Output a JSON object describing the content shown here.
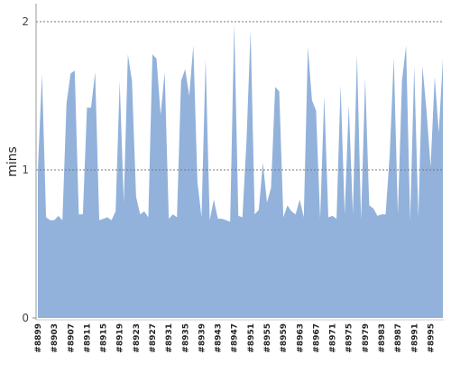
{
  "chart_data": {
    "type": "area",
    "ylabel": "mins",
    "color": "#92b2db",
    "grid": true,
    "ylim": [
      0,
      2.11
    ],
    "yticks": [
      0,
      1,
      2
    ],
    "categories": [
      "#8899",
      null,
      null,
      null,
      "#8903",
      null,
      null,
      null,
      "#8907",
      null,
      null,
      null,
      "#8911",
      null,
      null,
      null,
      "#8915",
      null,
      null,
      null,
      "#8919",
      null,
      null,
      null,
      "#8923",
      null,
      null,
      null,
      "#8927",
      null,
      null,
      null,
      "#8931",
      null,
      null,
      null,
      "#8935",
      null,
      null,
      null,
      "#8939",
      null,
      null,
      null,
      "#8943",
      null,
      null,
      null,
      "#8947",
      null,
      null,
      null,
      "#8951",
      null,
      null,
      null,
      "#8955",
      null,
      null,
      null,
      "#8959",
      null,
      null,
      null,
      "#8963",
      null,
      null,
      null,
      "#8967",
      null,
      null,
      null,
      "#8971",
      null,
      null,
      null,
      "#8975",
      null,
      null,
      null,
      "#8979",
      null,
      null,
      null,
      "#8983",
      null,
      null,
      null,
      "#8987",
      null,
      null,
      null,
      "#8991",
      null,
      null,
      null,
      "#8995",
      null,
      null,
      null
    ],
    "values": [
      1.0,
      1.65,
      0.68,
      0.66,
      0.66,
      0.69,
      0.66,
      1.45,
      1.65,
      1.67,
      0.7,
      0.7,
      1.42,
      1.42,
      1.66,
      0.66,
      0.67,
      0.68,
      0.66,
      0.72,
      1.6,
      0.78,
      1.78,
      1.6,
      0.82,
      0.7,
      0.72,
      0.68,
      1.78,
      1.75,
      1.37,
      1.66,
      0.67,
      0.7,
      0.68,
      1.6,
      1.68,
      1.5,
      1.84,
      0.92,
      0.68,
      1.75,
      0.66,
      0.8,
      0.67,
      0.67,
      0.66,
      0.65,
      1.99,
      0.69,
      0.68,
      1.2,
      1.94,
      0.7,
      0.73,
      1.05,
      0.78,
      0.88,
      1.56,
      1.53,
      0.68,
      0.76,
      0.72,
      0.7,
      0.8,
      0.68,
      1.83,
      1.47,
      1.4,
      0.67,
      1.5,
      0.68,
      0.69,
      0.67,
      1.57,
      0.7,
      1.44,
      0.7,
      1.78,
      0.66,
      1.62,
      0.76,
      0.74,
      0.69,
      0.7,
      0.7,
      1.1,
      1.76,
      0.7,
      1.6,
      1.84,
      0.66,
      1.7,
      0.68,
      1.7,
      1.4,
      1.02,
      1.63,
      1.25,
      1.75
    ]
  }
}
